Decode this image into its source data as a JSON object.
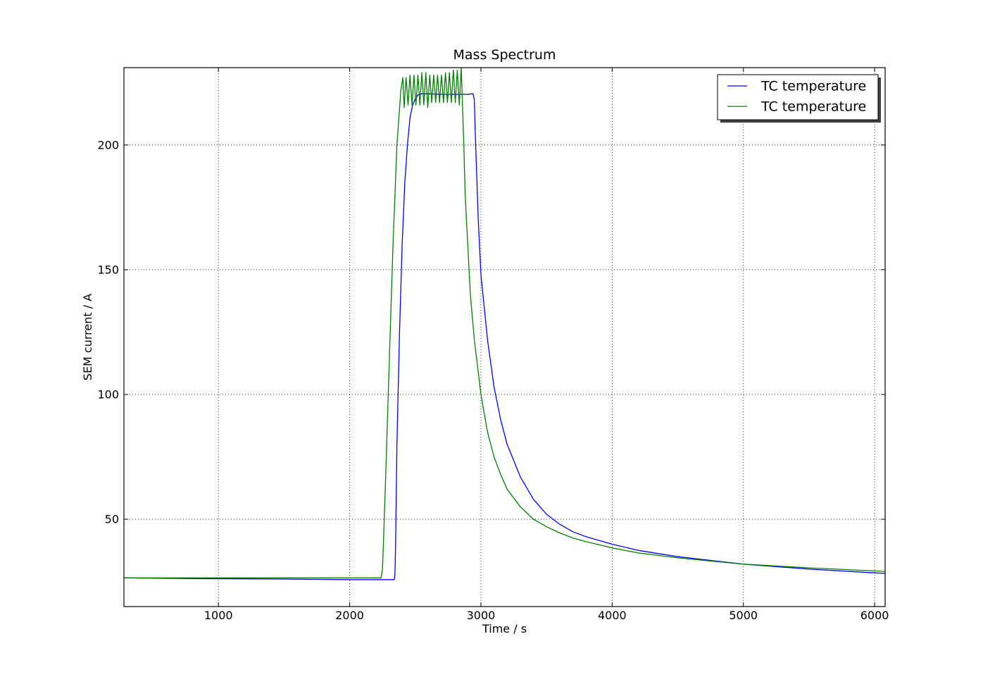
{
  "chart_data": {
    "type": "line",
    "title": "Mass Spectrum",
    "xlabel": "Time / s",
    "ylabel": "SEM current / A",
    "xlim": [
      280,
      6080
    ],
    "ylim": [
      15,
      231
    ],
    "grid": true,
    "legend_position": "top-right",
    "xticks": [
      1000,
      2000,
      3000,
      4000,
      5000,
      6000
    ],
    "xtick_labels": [
      "1000",
      "2000",
      "3000",
      "4000",
      "5000",
      "6000"
    ],
    "yticks": [
      50,
      100,
      150,
      200
    ],
    "ytick_labels": [
      "50",
      "100",
      "150",
      "200"
    ],
    "series": [
      {
        "name": "TC temperature",
        "color": "#0000ff",
        "x": [
          280,
          800,
          1500,
          2000,
          2340,
          2345,
          2350,
          2360,
          2380,
          2400,
          2420,
          2440,
          2460,
          2480,
          2500,
          2520,
          2540,
          2600,
          2700,
          2800,
          2900,
          2930,
          2940,
          2950,
          2960,
          2980,
          3000,
          3050,
          3100,
          3150,
          3200,
          3300,
          3400,
          3500,
          3600,
          3700,
          3800,
          4000,
          4200,
          4500,
          5000,
          5500,
          6000,
          6080
        ],
        "y": [
          26.5,
          26.2,
          26.0,
          25.8,
          25.8,
          28,
          40,
          80,
          125,
          160,
          185,
          200,
          211,
          216,
          218.5,
          220,
          220.5,
          220.5,
          220.3,
          220.3,
          220.3,
          220.5,
          220.5,
          218,
          200,
          170,
          148,
          122,
          103,
          90,
          80,
          67,
          58,
          52,
          48,
          45,
          43,
          40,
          37.5,
          35,
          32,
          30,
          28.5,
          28.3
        ]
      },
      {
        "name": "TC temperature",
        "color": "#008000",
        "x": [
          280,
          1000,
          2000,
          2240,
          2250,
          2270,
          2300,
          2330,
          2360,
          2390,
          2405,
          2415,
          2430,
          2445,
          2460,
          2475,
          2490,
          2505,
          2520,
          2535,
          2550,
          2565,
          2580,
          2595,
          2610,
          2625,
          2640,
          2655,
          2670,
          2685,
          2700,
          2715,
          2730,
          2745,
          2760,
          2775,
          2790,
          2805,
          2820,
          2835,
          2850,
          2860,
          2870,
          2880,
          2900,
          2920,
          2950,
          3000,
          3050,
          3100,
          3150,
          3200,
          3300,
          3400,
          3500,
          3600,
          3700,
          3800,
          4000,
          4200,
          4500,
          5000,
          5500,
          6000,
          6080
        ],
        "y": [
          26.5,
          26.5,
          26.5,
          26.5,
          30,
          60,
          110,
          160,
          200,
          222,
          227,
          215,
          227,
          216,
          228,
          216,
          228,
          216,
          228,
          216,
          229,
          216,
          229,
          215,
          228,
          217,
          228,
          217,
          228,
          217,
          228,
          217,
          229,
          217,
          229,
          217,
          230,
          217,
          230,
          216,
          231,
          215,
          200,
          180,
          160,
          140,
          122,
          100,
          85,
          75,
          68,
          62,
          55,
          50,
          47,
          44.5,
          42.5,
          41,
          38.5,
          36.5,
          34.5,
          32,
          30.5,
          29.3,
          29.1
        ]
      }
    ]
  }
}
